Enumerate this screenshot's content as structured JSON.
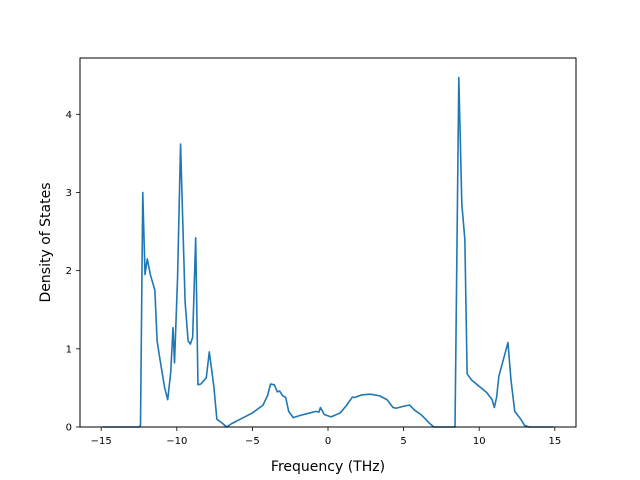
{
  "chart_data": {
    "type": "line",
    "title": "",
    "xlabel": "Frequency (THz)",
    "ylabel": "Density of States",
    "xlim": [
      -16.4,
      16.4
    ],
    "ylim": [
      0,
      4.72
    ],
    "xticks": [
      -15,
      -10,
      -5,
      0,
      5,
      10,
      15
    ],
    "xtick_labels": [
      "−15",
      "−10",
      "−5",
      "0",
      "5",
      "10",
      "15"
    ],
    "yticks": [
      0,
      1,
      2,
      3,
      4
    ],
    "ytick_labels": [
      "0",
      "1",
      "2",
      "3",
      "4"
    ],
    "grid": false,
    "legend": "none",
    "series": [
      {
        "color": "#1f77b4",
        "points": [
          [
            -14.9,
            0.0
          ],
          [
            -12.5,
            0.0
          ],
          [
            -12.4,
            0.02
          ],
          [
            -12.25,
            3.0
          ],
          [
            -12.1,
            1.95
          ],
          [
            -11.95,
            2.15
          ],
          [
            -11.75,
            1.95
          ],
          [
            -11.45,
            1.75
          ],
          [
            -11.3,
            1.1
          ],
          [
            -11.1,
            0.85
          ],
          [
            -10.8,
            0.5
          ],
          [
            -10.6,
            0.35
          ],
          [
            -10.4,
            0.7
          ],
          [
            -10.25,
            1.27
          ],
          [
            -10.15,
            0.82
          ],
          [
            -9.95,
            1.9
          ],
          [
            -9.75,
            3.62
          ],
          [
            -9.6,
            2.6
          ],
          [
            -9.45,
            1.6
          ],
          [
            -9.25,
            1.1
          ],
          [
            -9.1,
            1.06
          ],
          [
            -8.95,
            1.15
          ],
          [
            -8.75,
            2.42
          ],
          [
            -8.6,
            0.54
          ],
          [
            -8.4,
            0.55
          ],
          [
            -8.05,
            0.63
          ],
          [
            -7.85,
            0.96
          ],
          [
            -7.55,
            0.52
          ],
          [
            -7.35,
            0.1
          ],
          [
            -7.0,
            0.05
          ],
          [
            -6.7,
            0.0
          ],
          [
            -6.4,
            0.04
          ],
          [
            -5.8,
            0.1
          ],
          [
            -5.0,
            0.18
          ],
          [
            -4.3,
            0.28
          ],
          [
            -4.0,
            0.4
          ],
          [
            -3.8,
            0.55
          ],
          [
            -3.55,
            0.54
          ],
          [
            -3.35,
            0.45
          ],
          [
            -3.2,
            0.46
          ],
          [
            -3.0,
            0.4
          ],
          [
            -2.8,
            0.38
          ],
          [
            -2.6,
            0.2
          ],
          [
            -2.3,
            0.12
          ],
          [
            -1.8,
            0.15
          ],
          [
            -1.2,
            0.18
          ],
          [
            -0.8,
            0.2
          ],
          [
            -0.6,
            0.19
          ],
          [
            -0.5,
            0.25
          ],
          [
            -0.25,
            0.16
          ],
          [
            0.2,
            0.13
          ],
          [
            0.8,
            0.18
          ],
          [
            1.2,
            0.27
          ],
          [
            1.6,
            0.38
          ],
          [
            1.8,
            0.38
          ],
          [
            2.2,
            0.41
          ],
          [
            2.8,
            0.42
          ],
          [
            3.4,
            0.4
          ],
          [
            3.9,
            0.35
          ],
          [
            4.3,
            0.25
          ],
          [
            4.5,
            0.24
          ],
          [
            5.1,
            0.27
          ],
          [
            5.4,
            0.28
          ],
          [
            5.7,
            0.22
          ],
          [
            6.2,
            0.15
          ],
          [
            6.7,
            0.05
          ],
          [
            7.0,
            0.0
          ],
          [
            8.4,
            0.0
          ],
          [
            8.65,
            4.47
          ],
          [
            8.85,
            2.85
          ],
          [
            9.05,
            2.4
          ],
          [
            9.2,
            0.68
          ],
          [
            9.5,
            0.6
          ],
          [
            10.0,
            0.52
          ],
          [
            10.5,
            0.44
          ],
          [
            10.85,
            0.35
          ],
          [
            11.0,
            0.25
          ],
          [
            11.15,
            0.38
          ],
          [
            11.3,
            0.65
          ],
          [
            11.9,
            1.08
          ],
          [
            12.1,
            0.6
          ],
          [
            12.35,
            0.2
          ],
          [
            12.75,
            0.1
          ],
          [
            13.0,
            0.02
          ],
          [
            13.3,
            0.0
          ],
          [
            14.9,
            0.0
          ]
        ]
      }
    ]
  }
}
